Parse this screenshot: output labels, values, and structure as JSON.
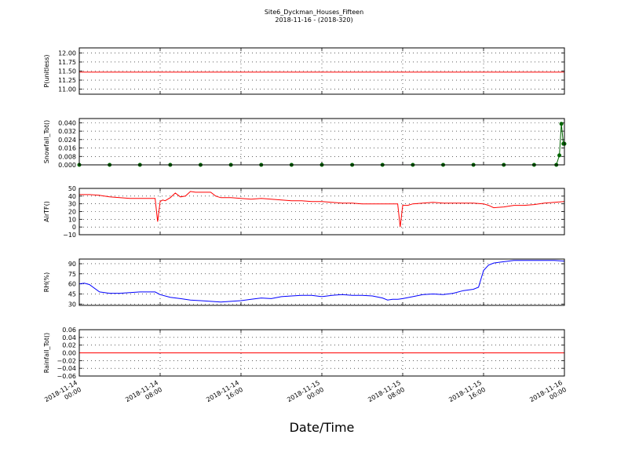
{
  "figure": {
    "title": "Site6_Dyckman_Houses_Fifteen",
    "subtitle": "2018-11-16 - (2018-320)",
    "xlabel": "Date/Time"
  },
  "chart_data": [
    {
      "type": "line",
      "ylabel": "P(unitless)",
      "ylim": [
        10.86,
        12.14
      ],
      "yticks": [
        "12.00",
        "11.75",
        "11.50",
        "11.25",
        "11.00"
      ],
      "ytick_values": [
        12.0,
        11.75,
        11.5,
        11.25,
        11.0
      ],
      "xlim": [
        0,
        48
      ],
      "grid": true,
      "series": [
        {
          "color": "#ff0000",
          "markers": false,
          "x": [
            0,
            48
          ],
          "y": [
            11.47,
            11.47
          ]
        }
      ]
    },
    {
      "type": "line",
      "ylabel": "Snowfall_Tot()",
      "ylim": [
        0,
        0.044
      ],
      "yticks": [
        "0.040",
        "0.032",
        "0.024",
        "0.016",
        "0.008",
        "0.000"
      ],
      "ytick_values": [
        0.04,
        0.032,
        0.024,
        0.016,
        0.008,
        0.0
      ],
      "xlim": [
        0,
        48
      ],
      "grid": true,
      "series": [
        {
          "color": "#006400",
          "markers": true,
          "x": [
            0,
            3,
            6,
            9,
            12,
            15,
            18,
            21,
            24,
            27,
            30,
            33,
            36,
            39,
            42,
            45,
            47.2,
            47.5,
            47.7,
            47.9,
            48
          ],
          "y": [
            0,
            0,
            0,
            0,
            0,
            0,
            0,
            0,
            0,
            0,
            0,
            0,
            0,
            0,
            0,
            0,
            0,
            0.009,
            0.039,
            0.02,
            0.02
          ]
        }
      ]
    },
    {
      "type": "line",
      "ylabel": "AirTF()",
      "ylim": [
        -10,
        50
      ],
      "yticks": [
        "50",
        "40",
        "30",
        "20",
        "10",
        "0",
        "−10"
      ],
      "ytick_values": [
        50,
        40,
        30,
        20,
        10,
        0,
        -10
      ],
      "xlim": [
        0,
        48
      ],
      "grid": true,
      "series": [
        {
          "color": "#ff0000",
          "markers": false,
          "x": [
            0,
            1,
            2,
            3,
            4,
            5,
            6,
            7,
            7.5,
            7.75,
            8,
            8.25,
            8.5,
            9,
            9.5,
            10,
            10.5,
            11,
            11.5,
            12,
            13,
            13.5,
            14,
            15,
            16,
            17,
            18,
            19,
            20,
            21,
            22,
            23,
            24,
            25,
            26,
            27,
            28,
            29,
            30,
            31,
            31.5,
            31.75,
            32,
            32.25,
            32.5,
            33,
            34,
            35,
            36,
            37,
            38,
            39,
            40,
            40.5,
            41,
            42,
            43,
            44,
            45,
            46,
            47,
            48
          ],
          "y": [
            42,
            42,
            41,
            39,
            38,
            37,
            37,
            37,
            37,
            7,
            33,
            35,
            34,
            38,
            44,
            39,
            40,
            46,
            45,
            45,
            45,
            40,
            38,
            38,
            37,
            36,
            37,
            36,
            35,
            34,
            34,
            33,
            33,
            32,
            31,
            31,
            30,
            30,
            30,
            30,
            30,
            0,
            28,
            28,
            28,
            30,
            31,
            32,
            31,
            31,
            31,
            31,
            30,
            28,
            25,
            26,
            28,
            28,
            29,
            31,
            32,
            33
          ]
        }
      ]
    },
    {
      "type": "line",
      "ylabel": "RH(%)",
      "ylim": [
        28,
        97
      ],
      "yticks": [
        "90",
        "75",
        "60",
        "45",
        "30"
      ],
      "ytick_values": [
        90,
        75,
        60,
        45,
        30
      ],
      "xlim": [
        0,
        48
      ],
      "grid": true,
      "series": [
        {
          "color": "#0000ff",
          "markers": false,
          "x": [
            0,
            0.5,
            1,
            2,
            3,
            4,
            5,
            6,
            7,
            7.5,
            8,
            9,
            10,
            11,
            12,
            13,
            14,
            15,
            16,
            17,
            18,
            19,
            20,
            21,
            22,
            23,
            24,
            25,
            26,
            27,
            28,
            29,
            30,
            30.5,
            31,
            31.5,
            32,
            33,
            34,
            35,
            36,
            37,
            38,
            39,
            39.5,
            40,
            40.5,
            41,
            42,
            43,
            44,
            45,
            46,
            47,
            48
          ],
          "y": [
            60,
            61,
            59,
            48,
            46,
            46,
            47,
            48,
            48,
            48,
            44,
            40,
            38,
            36,
            35,
            34,
            33,
            34,
            35,
            37,
            39,
            38,
            41,
            42,
            43,
            43,
            41,
            43,
            44,
            43,
            43,
            42,
            39,
            36,
            37,
            37,
            38,
            41,
            44,
            45,
            44,
            46,
            50,
            52,
            55,
            80,
            88,
            91,
            93,
            95,
            95,
            95,
            95,
            95,
            94
          ]
        }
      ]
    },
    {
      "type": "line",
      "ylabel": "Rainfall_Tot()",
      "ylim": [
        -0.06,
        0.06
      ],
      "yticks": [
        "0.06",
        "0.04",
        "0.02",
        "0.00",
        "−0.02",
        "−0.04",
        "−0.06"
      ],
      "ytick_values": [
        0.06,
        0.04,
        0.02,
        0.0,
        -0.02,
        -0.04,
        -0.06
      ],
      "xlim": [
        0,
        48
      ],
      "grid": true,
      "xticks": [
        "2018-11-14\n00:00",
        "2018-11-14\n08:00",
        "2018-11-14\n16:00",
        "2018-11-15\n00:00",
        "2018-11-15\n08:00",
        "2018-11-15\n16:00",
        "2018-11-16\n00:00"
      ],
      "xtick_values": [
        0,
        8,
        16,
        24,
        32,
        40,
        48
      ],
      "series": [
        {
          "color": "#ff0000",
          "markers": false,
          "x": [
            0,
            48
          ],
          "y": [
            0,
            0
          ]
        }
      ]
    }
  ]
}
